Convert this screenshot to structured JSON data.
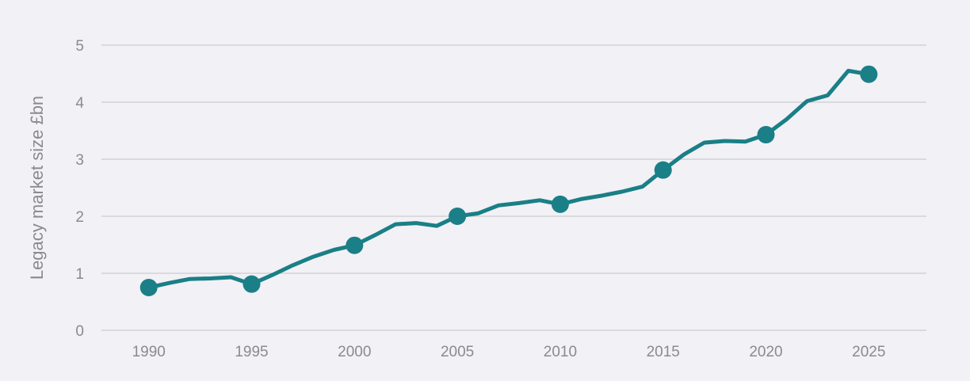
{
  "chart_data": {
    "type": "line",
    "title": "",
    "xlabel": "",
    "ylabel": "Legacy market size £bn",
    "xlim": [
      1987.7,
      2027.8
    ],
    "ylim": [
      0,
      5
    ],
    "x_ticks": [
      1990,
      1995,
      2000,
      2005,
      2010,
      2015,
      2020,
      2025
    ],
    "y_ticks": [
      0,
      1,
      2,
      3,
      4,
      5
    ],
    "grid": "horizontal",
    "line_color": "#1a7f86",
    "grid_color": "#c2c2c6",
    "series": [
      {
        "x": [
          1990,
          1991,
          1992,
          1993,
          1994,
          1995,
          1996,
          1997,
          1998,
          1999,
          2000,
          2001,
          2002,
          2003,
          2004,
          2005,
          2006,
          2007,
          2008,
          2009,
          2010,
          2011,
          2012,
          2013,
          2014,
          2015,
          2016,
          2017,
          2018,
          2019,
          2020,
          2021,
          2022,
          2023,
          2024,
          2025
        ],
        "y": [
          0.75,
          0.83,
          0.9,
          0.91,
          0.93,
          0.81,
          0.97,
          1.14,
          1.29,
          1.41,
          1.49,
          1.67,
          1.86,
          1.88,
          1.83,
          2.0,
          2.05,
          2.19,
          2.23,
          2.28,
          2.21,
          2.3,
          2.36,
          2.43,
          2.52,
          2.81,
          3.08,
          3.29,
          3.32,
          3.31,
          3.43,
          3.7,
          4.02,
          4.12,
          4.55,
          4.49
        ]
      }
    ],
    "markers": {
      "x": [
        1990,
        1995,
        2000,
        2005,
        2010,
        2015,
        2020,
        2025
      ],
      "y": [
        0.75,
        0.81,
        1.49,
        2.0,
        2.21,
        2.81,
        3.43,
        4.49
      ]
    }
  }
}
